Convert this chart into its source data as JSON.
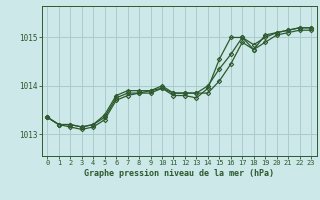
{
  "title": "Graphe pression niveau de la mer (hPa)",
  "bg_color": "#cce8e8",
  "grid_color": "#aacccc",
  "line_color": "#2d5a2d",
  "marker_color": "#2d5a2d",
  "x_labels": [
    "0",
    "1",
    "2",
    "3",
    "4",
    "5",
    "6",
    "7",
    "8",
    "9",
    "10",
    "11",
    "12",
    "13",
    "14",
    "15",
    "16",
    "17",
    "18",
    "19",
    "20",
    "21",
    "22",
    "23"
  ],
  "yticks": [
    1013,
    1014,
    1015
  ],
  "ylim": [
    1012.55,
    1015.65
  ],
  "xlim": [
    -0.5,
    23.5
  ],
  "series1": [
    1013.35,
    1013.2,
    1013.2,
    1013.15,
    1013.2,
    1013.35,
    1013.75,
    1013.85,
    1013.85,
    1013.9,
    1013.95,
    1013.85,
    1013.85,
    1013.85,
    1013.85,
    1014.1,
    1014.45,
    1014.9,
    1014.75,
    1014.9,
    1015.05,
    1015.1,
    1015.15,
    1015.15
  ],
  "series2": [
    1013.35,
    1013.2,
    1013.2,
    1013.15,
    1013.2,
    1013.4,
    1013.8,
    1013.9,
    1013.9,
    1013.9,
    1014.0,
    1013.85,
    1013.85,
    1013.85,
    1014.0,
    1014.35,
    1014.65,
    1015.0,
    1014.85,
    1015.0,
    1015.1,
    1015.15,
    1015.2,
    1015.2
  ],
  "series3": [
    1013.35,
    1013.2,
    1013.15,
    1013.1,
    1013.15,
    1013.3,
    1013.7,
    1013.8,
    1013.85,
    1013.85,
    1013.95,
    1013.8,
    1013.8,
    1013.75,
    1013.95,
    1014.55,
    1015.0,
    1015.0,
    1014.75,
    1015.05,
    1015.1,
    1015.15,
    1015.2,
    1015.2
  ]
}
